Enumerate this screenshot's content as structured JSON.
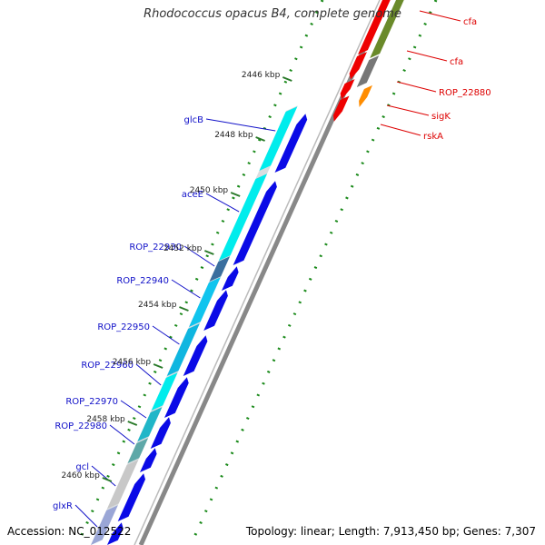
{
  "title": "Rhodococcus opacus B4, complete genome",
  "footer": {
    "accession": "Accession: NC_012522",
    "topology": "Topology: linear; Length: 7,913,450 bp; Genes: 7,307"
  },
  "ticks": [
    "2446 kbp",
    "2448 kbp",
    "2450 kbp",
    "2452 kbp",
    "2454 kbp",
    "2456 kbp",
    "2458 kbp",
    "2460 kbp"
  ],
  "left_labels": [
    "glcB",
    "aceE",
    "ROP_22930",
    "ROP_22940",
    "ROP_22950",
    "ROP_22960",
    "ROP_22970",
    "ROP_22980",
    "gcl",
    "glxR"
  ],
  "right_labels": [
    "cfa",
    "cfa",
    "ROP_22880",
    "sigK",
    "rskA"
  ],
  "colors": {
    "left_label": "#1010c8",
    "right_label": "#dd0000",
    "blue_gene": "#0a0ae6",
    "cyan_gene": "#00ecec",
    "steel_gene": "#3a6e9e",
    "red_gene": "#ee0000",
    "orange_gene": "#ff8c00",
    "olive_gene": "#6a8a2a",
    "gray_gene": "#777777",
    "backbone": "#888888",
    "dots": "#1a8a1a",
    "tick": "#2a7a2a"
  }
}
